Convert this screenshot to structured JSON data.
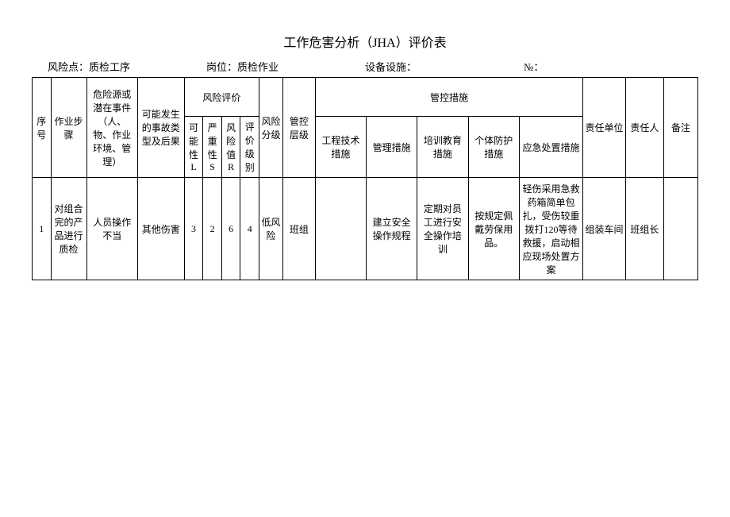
{
  "title": "工作危害分析（JHA）评价表",
  "meta": {
    "risk_point_label": "风险点：",
    "risk_point_value": "质检工序",
    "position_label": "岗位：",
    "position_value": "质检作业",
    "equipment_label": "设备设施：",
    "equipment_value": "",
    "no_label": "№：",
    "no_value": ""
  },
  "headers": {
    "seq": "序号",
    "step": "作业步骤",
    "hazard": "危险源或潜在事件（人、物、作业环境、管理）",
    "type": "可能发生的事故类型及后果",
    "risk_eval": "风险评价",
    "L": "可能性L",
    "S": "严重性S",
    "R": "风险值R",
    "lvl": "评价级别",
    "risk_grade": "风险分级",
    "ctrl_level": "管控层级",
    "ctrl_measures": "管控措施",
    "eng": "工程技术措施",
    "mgmt": "管理措施",
    "train": "培训教育措施",
    "ppe": "个体防护措施",
    "emerg": "应急处置措施",
    "unit": "责任单位",
    "person": "责任人",
    "remark": "备注"
  },
  "rows": [
    {
      "seq": "1",
      "step": "对组合完的产品进行质检",
      "hazard": "人员操作不当",
      "type": "其他伤害",
      "L": "3",
      "S": "2",
      "R": "6",
      "lvl": "4",
      "risk_grade": "低风险",
      "ctrl_level": "班组",
      "eng": "",
      "mgmt": "建立安全操作规程",
      "train": "定期对员工进行安全操作培训",
      "ppe": "按规定佩戴劳保用品。",
      "emerg": "轻伤采用急救药箱简单包扎，受伤较重拨打120等待救援，启动相应现场处置方案",
      "unit": "组装车间",
      "person": "班组长",
      "remark": ""
    }
  ]
}
